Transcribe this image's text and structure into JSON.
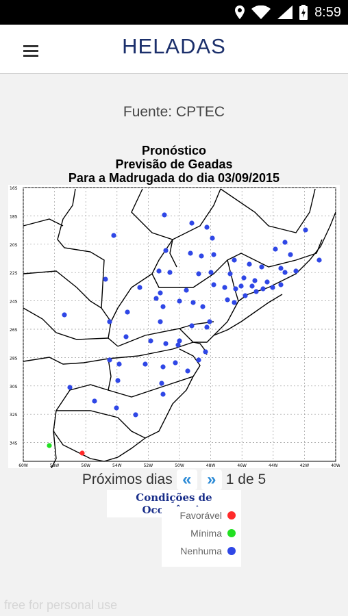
{
  "status": {
    "time": "8:59"
  },
  "header": {
    "title": "HELADAS"
  },
  "source": "Fuente: CPTEC",
  "chart": {
    "title_lines": [
      "Pronóstico",
      "Previsão de Geadas",
      "Para a Madrugada do dia 03/09/2015"
    ],
    "lat_labels": [
      "16S",
      "18S",
      "20S",
      "22S",
      "24S",
      "26S",
      "28S",
      "30S",
      "32S",
      "34S"
    ],
    "lon_labels": [
      "60W",
      "58W",
      "56W",
      "54W",
      "52W",
      "50W",
      "48W",
      "46W",
      "44W",
      "42W",
      "40W"
    ]
  },
  "pager": {
    "prefix": "Próximos dias",
    "prev": "«",
    "next": "»",
    "position": "1 de 5"
  },
  "legend": {
    "title": "Condições de Ocorrência",
    "items": [
      {
        "label": "Favorável",
        "color": "#ff2a2a"
      },
      {
        "label": "Mínima",
        "color": "#22e022"
      },
      {
        "label": "Nenhuma",
        "color": "#2f47e6"
      }
    ]
  },
  "watermark": "free for personal use"
}
